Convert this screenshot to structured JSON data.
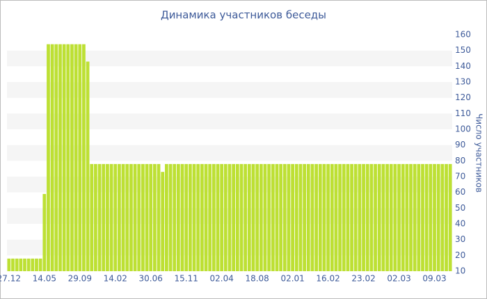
{
  "chart_data": {
    "type": "bar",
    "title": "Динамика участников беседы",
    "y_axis_label": "Число участников",
    "categories": [
      "27.12",
      null,
      null,
      null,
      null,
      null,
      null,
      null,
      null,
      "14.05",
      null,
      null,
      null,
      null,
      null,
      null,
      null,
      null,
      "29.09",
      null,
      null,
      null,
      null,
      null,
      null,
      null,
      null,
      "14.02",
      null,
      null,
      null,
      null,
      null,
      null,
      null,
      null,
      "30.06",
      null,
      null,
      null,
      null,
      null,
      null,
      null,
      null,
      "15.11",
      null,
      null,
      null,
      null,
      null,
      null,
      null,
      null,
      "02.04",
      null,
      null,
      null,
      null,
      null,
      null,
      null,
      null,
      "18.08",
      null,
      null,
      null,
      null,
      null,
      null,
      null,
      null,
      "02.01",
      null,
      null,
      null,
      null,
      null,
      null,
      null,
      null,
      "16.02",
      null,
      null,
      null,
      null,
      null,
      null,
      null,
      null,
      "23.02",
      null,
      null,
      null,
      null,
      null,
      null,
      null,
      null,
      "02.03",
      null,
      null,
      null,
      null,
      null,
      null,
      null,
      null,
      "09.03",
      null,
      null,
      null,
      null
    ],
    "values": [
      18,
      18,
      18,
      18,
      18,
      18,
      18,
      18,
      18,
      59,
      154,
      154,
      154,
      154,
      154,
      154,
      154,
      154,
      154,
      154,
      143,
      78,
      78,
      78,
      78,
      78,
      78,
      78,
      78,
      78,
      78,
      78,
      78,
      78,
      78,
      78,
      78,
      78,
      78,
      73,
      78,
      78,
      78,
      78,
      78,
      78,
      78,
      78,
      78,
      78,
      78,
      78,
      78,
      78,
      78,
      78,
      78,
      78,
      78,
      78,
      78,
      78,
      78,
      78,
      78,
      78,
      78,
      78,
      78,
      78,
      78,
      78,
      78,
      78,
      78,
      78,
      78,
      78,
      78,
      78,
      78,
      78,
      78,
      78,
      78,
      78,
      78,
      78,
      78,
      78,
      78,
      78,
      78,
      78,
      78,
      78,
      78,
      78,
      78,
      78,
      78,
      78,
      78,
      78,
      78,
      78,
      78,
      78,
      78,
      78,
      78,
      78,
      78
    ],
    "color": "#bde034",
    "ylim": [
      10,
      160
    ],
    "yticks": [
      10,
      20,
      30,
      40,
      50,
      60,
      70,
      80,
      90,
      100,
      110,
      120,
      130,
      140,
      150,
      160
    ],
    "y_axis_side": "right",
    "grid": "bands"
  }
}
